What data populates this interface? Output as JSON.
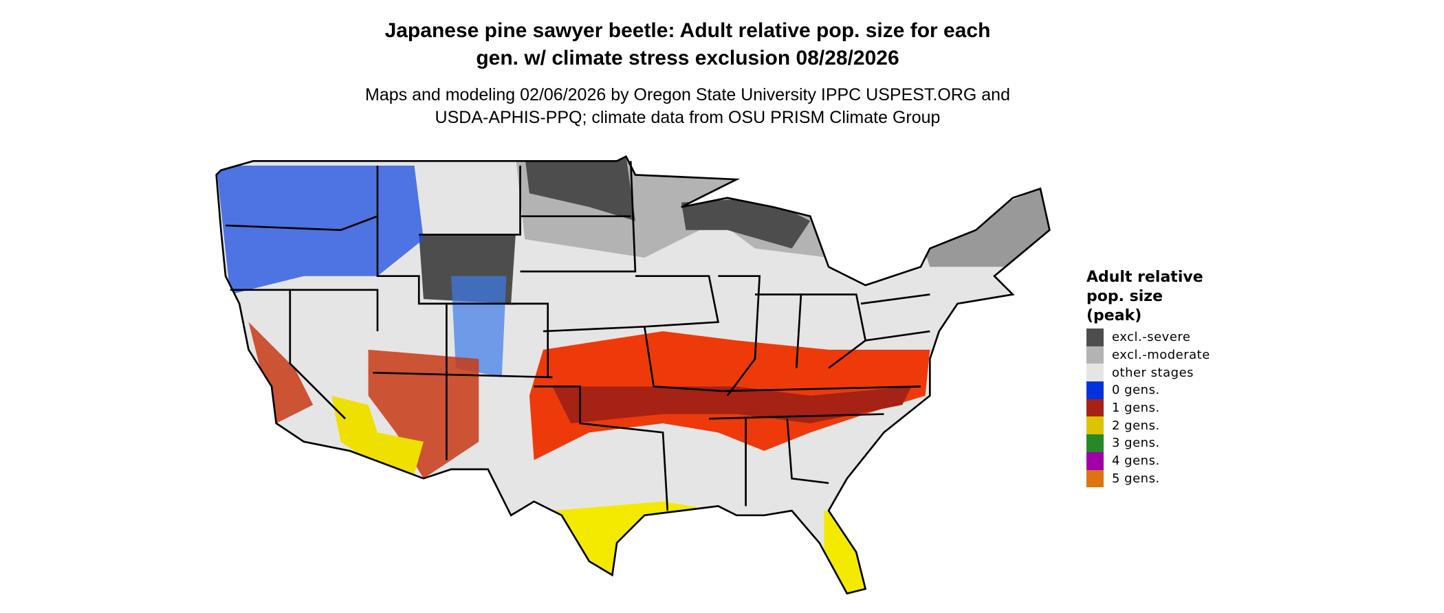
{
  "title_lines": [
    "Japanese pine sawyer beetle: Adult relative pop. size for each",
    "gen. w/ climate stress exclusion 08/28/2026"
  ],
  "subtitle_lines": [
    "Maps and modeling 02/06/2026 by Oregon State University IPPC USPEST.ORG and",
    "USDA-APHIS-PPQ; climate data from OSU PRISM Climate Group"
  ],
  "legend": {
    "title_lines": [
      "Adult relative",
      "pop. size",
      "(peak)"
    ],
    "items": [
      {
        "label": "excl.-severe",
        "color": "#4d4d4d"
      },
      {
        "label": "excl.-moderate",
        "color": "#b3b3b3"
      },
      {
        "label": "other stages",
        "color": "#e5e5e5"
      },
      {
        "label": "0 gens.",
        "color": "#0033dd"
      },
      {
        "label": "1 gens.",
        "color": "#a52214"
      },
      {
        "label": "2 gens.",
        "color": "#dcc500"
      },
      {
        "label": "3 gens.",
        "color": "#268926"
      },
      {
        "label": "4 gens.",
        "color": "#a000a8"
      },
      {
        "label": "5 gens.",
        "color": "#dd7311"
      }
    ]
  }
}
